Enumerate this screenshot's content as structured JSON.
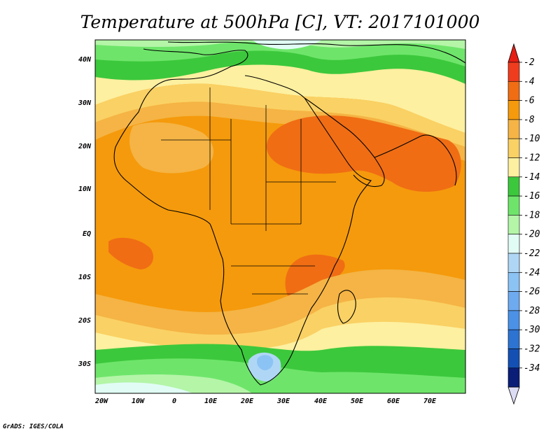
{
  "map": {
    "title": "Temperature at 500hPa [C], VT: 2017101000",
    "credit": "GrADS: IGES/COLA",
    "longitude_labels": [
      "20W",
      "10W",
      "0",
      "10E",
      "20E",
      "30E",
      "40E",
      "50E",
      "60E",
      "70E"
    ],
    "latitude_labels": [
      "40N",
      "30N",
      "20N",
      "10N",
      "EQ",
      "10S",
      "20S",
      "30S"
    ]
  },
  "colorbar": {
    "labels": [
      "-2",
      "-4",
      "-6",
      "-8",
      "-10",
      "-12",
      "-14",
      "-16",
      "-18",
      "-20",
      "-22",
      "-24",
      "-26",
      "-28",
      "-30",
      "-32",
      "-34"
    ],
    "colors": [
      "#f03c1e",
      "#f06d14",
      "#f59a0c",
      "#f5b445",
      "#fad164",
      "#fdf0a0",
      "#3cc83c",
      "#6ee56a",
      "#b4f5a8",
      "#e1fcf5",
      "#afd7f5",
      "#8cc3f5",
      "#6eaaf0",
      "#4b91e6",
      "#2d73d2",
      "#1450b4",
      "#0a1e78"
    ],
    "top_color": "#e61e14",
    "bottom_color": "#dcdcf5"
  }
}
